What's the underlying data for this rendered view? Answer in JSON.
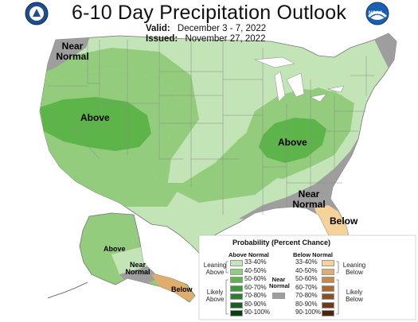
{
  "header": {
    "title": "6-10 Day Precipitation Outlook",
    "valid_label": "Valid:",
    "valid_value": "December 3 - 7, 2022",
    "issued_label": "Issued:",
    "issued_value": "November 27, 2022",
    "left_logo_icon": "doc-seal-icon",
    "right_logo_icon": "noaa-logo-icon",
    "noaa_text": "NOAA"
  },
  "map_labels": {
    "near_normal_nw": "Near Normal",
    "above_west": "Above",
    "above_ohio": "Above",
    "near_normal_se": "Near Normal",
    "below_fl": "Below",
    "above_alaska": "Above",
    "near_normal_ak": "Near Normal",
    "below_ak": "Below"
  },
  "legend": {
    "title": "Probability (Percent Chance)",
    "above_header": "Above Normal",
    "below_header": "Below Normal",
    "near_header": "Near Normal",
    "leaning_above": "Leaning Above",
    "likely_above": "Likely Above",
    "leaning_below": "Leaning Below",
    "likely_below": "Likely Below",
    "above_ranges": [
      "33-40%",
      "40-50%",
      "50-60%",
      "60-70%",
      "70-80%",
      "80-90%",
      "90-100%"
    ],
    "below_ranges": [
      "33-40%",
      "40-50%",
      "50-60%",
      "60-70%",
      "70-80%",
      "80-90%",
      "90-100%"
    ],
    "above_colors": [
      "#c3e4b6",
      "#93cc7c",
      "#5db54a",
      "#3a9b3a",
      "#2e7d32",
      "#1d5e24",
      "#0e3d14"
    ],
    "below_colors": [
      "#f5d29a",
      "#e0ad6c",
      "#c88a46",
      "#a86a30",
      "#8a5125",
      "#6b3b1a",
      "#4a2610"
    ],
    "near_color": "#9e9e9e"
  }
}
